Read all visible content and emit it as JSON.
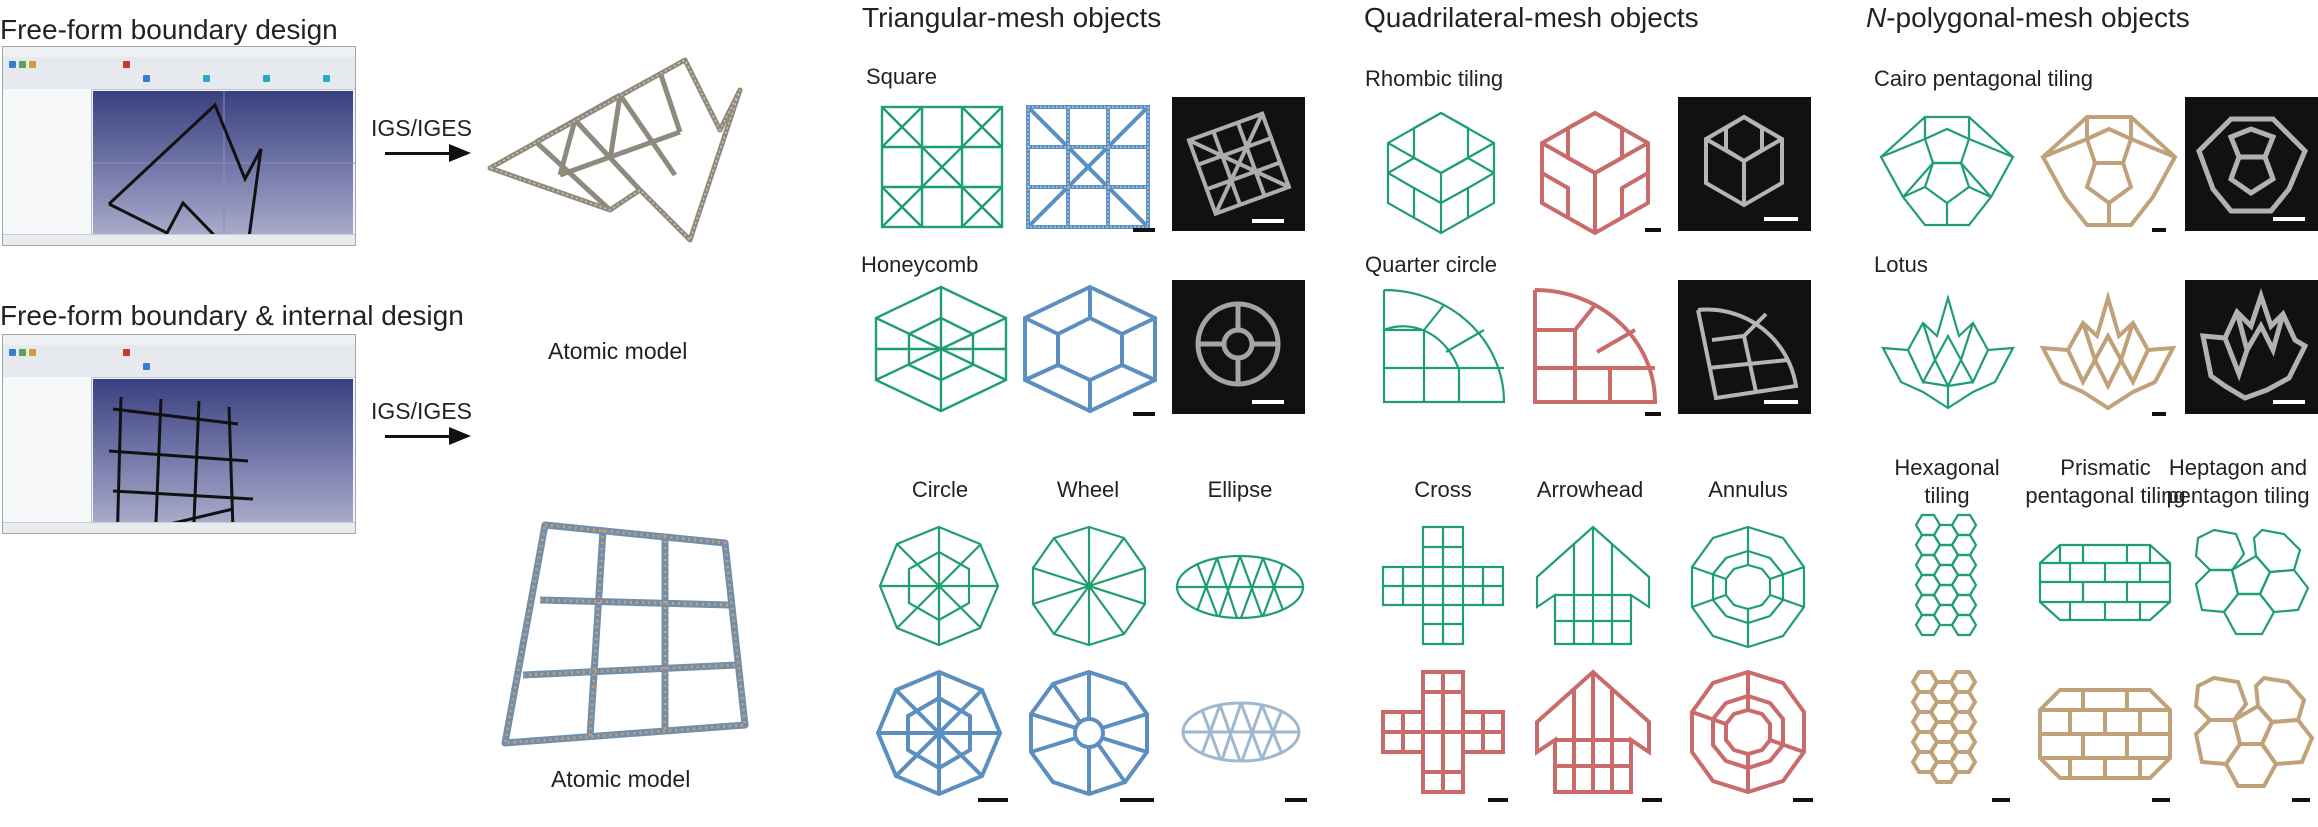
{
  "left": {
    "section1_title": "Free-form boundary design",
    "section2_title": "Free-form boundary & internal design",
    "arrow_label_1": "IGS/IGES",
    "arrow_label_2": "IGS/IGES",
    "model_label_1": "Atomic model",
    "model_label_2": "Atomic model"
  },
  "triangular": {
    "title": "Triangular-mesh objects",
    "square": "Square",
    "honeycomb": "Honeycomb",
    "circle": "Circle",
    "wheel": "Wheel",
    "ellipse": "Ellipse"
  },
  "quadrilateral": {
    "title": "Quadrilateral-mesh objects",
    "rhombic": "Rhombic tiling",
    "quarter": "Quarter circle",
    "cross": "Cross",
    "arrowhead": "Arrowhead",
    "annulus": "Annulus"
  },
  "polygonal": {
    "title_prefix": "N",
    "title_rest": "-polygonal-mesh objects",
    "cairo": "Cairo pentagonal tiling",
    "lotus": "Lotus",
    "hex_1": "Hexagonal",
    "hex_2": "tiling",
    "prism_1": "Prismatic",
    "prism_2": "pentagonal tiling",
    "hepta_1": "Heptagon and",
    "hepta_2": "pentagon tiling"
  },
  "colors": {
    "wire_green": "#1f9e6e",
    "model_blue": "#5b8fc0",
    "model_red": "#c96b6b",
    "model_tan": "#bfa27a",
    "model_orange": "#e39a4e"
  }
}
